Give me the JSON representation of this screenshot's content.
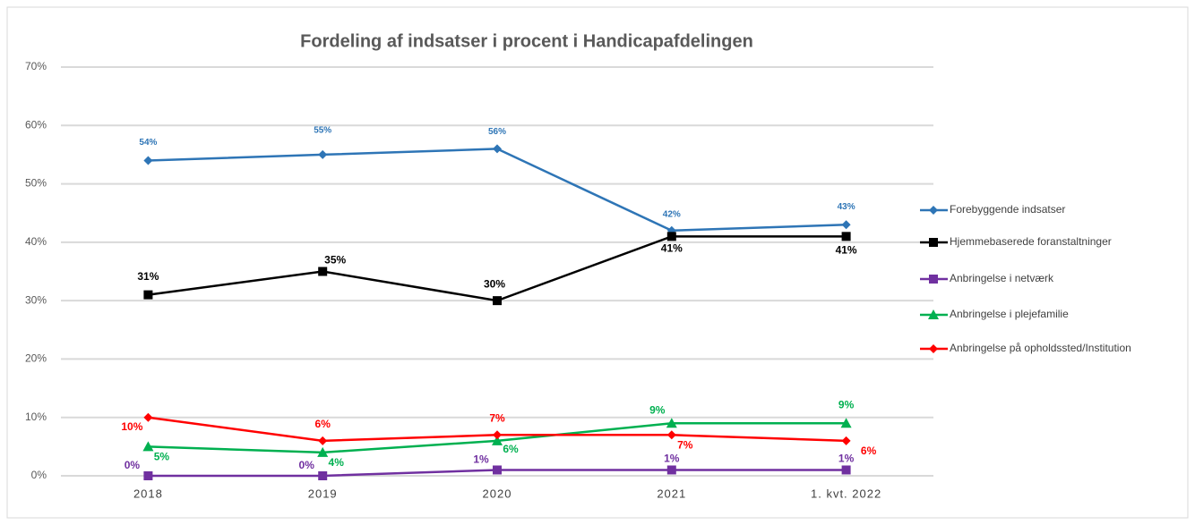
{
  "chart_data": {
    "type": "line",
    "title": "Fordeling af indsatser i procent i Handicapafdelingen",
    "categories": [
      "2018",
      "2019",
      "2020",
      "2021",
      "1. kvt. 2022"
    ],
    "series": [
      {
        "name": "Forebyggende indsatser",
        "color": "#2e75b6",
        "marker": "diamond",
        "values": [
          54,
          55,
          56,
          42,
          43
        ],
        "value_labels": [
          "54%",
          "55%",
          "56%",
          "42%",
          "43%"
        ]
      },
      {
        "name": "Hjemmebaserede foranstaltninger",
        "color": "#000000",
        "marker": "square",
        "values": [
          31,
          35,
          30,
          41,
          41
        ],
        "value_labels": [
          "31%",
          "35%",
          "30%",
          "41%",
          "41%"
        ]
      },
      {
        "name": "Anbringelse i netværk",
        "color": "#7030a0",
        "marker": "square",
        "values": [
          0,
          0,
          1,
          1,
          1
        ],
        "value_labels": [
          "0%",
          "0%",
          "1%",
          "1%",
          "1%"
        ]
      },
      {
        "name": "Anbringelse i plejefamilie",
        "color": "#00b050",
        "marker": "triangle",
        "values": [
          5,
          4,
          6,
          9,
          9
        ],
        "value_labels": [
          "5%",
          "4%",
          "6%",
          "9%",
          "9%"
        ]
      },
      {
        "name": "Anbringelse på opholdssted/Institution",
        "color": "#ff0000",
        "marker": "diamond",
        "values": [
          10,
          6,
          7,
          7,
          6
        ],
        "value_labels": [
          "10%",
          "6%",
          "7%",
          "7%",
          "6%"
        ]
      }
    ],
    "ylim": [
      0,
      70
    ],
    "yticks": [
      {
        "value": 0,
        "label": "0%"
      },
      {
        "value": 10,
        "label": "10%"
      },
      {
        "value": 20,
        "label": "20%"
      },
      {
        "value": 30,
        "label": "30%"
      },
      {
        "value": 40,
        "label": "40%"
      },
      {
        "value": 50,
        "label": "50%"
      },
      {
        "value": 60,
        "label": "60%"
      },
      {
        "value": 70,
        "label": "70%"
      }
    ],
    "grid": true,
    "legend": "right"
  }
}
